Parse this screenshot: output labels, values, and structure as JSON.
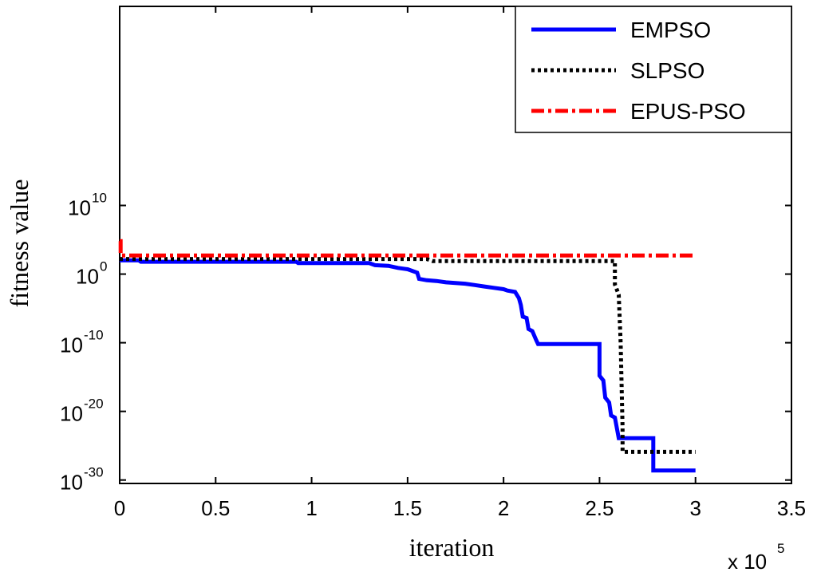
{
  "chart_data": {
    "type": "line",
    "xlabel": "iteration",
    "ylabel": "fitness value",
    "x_multiplier": {
      "base": "x 10",
      "exp": "5"
    },
    "xlim": [
      0,
      3.5
    ],
    "ylim_log10": [
      -30.5,
      39
    ],
    "x_ticks": [
      "0",
      "0.5",
      "1",
      "1.5",
      "2",
      "2.5",
      "3",
      "3.5"
    ],
    "y_ticks": [
      {
        "base": "10",
        "exp": "-30",
        "log": -30
      },
      {
        "base": "10",
        "exp": "-20",
        "log": -20
      },
      {
        "base": "10",
        "exp": "-10",
        "log": -10
      },
      {
        "base": "10",
        "exp": "0",
        "log": 0
      },
      {
        "base": "10",
        "exp": "10",
        "log": 10
      }
    ],
    "y_scale": "log",
    "grid": false,
    "legend_position": "top-right",
    "series": [
      {
        "name": "EMPSO",
        "color": "#0000ff",
        "style": "solid",
        "points": [
          [
            0,
            2
          ],
          [
            0.1,
            2
          ],
          [
            0.11,
            1.8
          ],
          [
            0.92,
            1.8
          ],
          [
            0.93,
            1.6
          ],
          [
            1.3,
            1.6
          ],
          [
            1.33,
            1.3
          ],
          [
            1.4,
            1.2
          ],
          [
            1.45,
            0.9
          ],
          [
            1.5,
            0.7
          ],
          [
            1.55,
            0.2
          ],
          [
            1.56,
            -0.7
          ],
          [
            1.6,
            -0.9
          ],
          [
            1.65,
            -1.0
          ],
          [
            1.7,
            -1.2
          ],
          [
            1.8,
            -1.4
          ],
          [
            1.85,
            -1.6
          ],
          [
            1.9,
            -1.8
          ],
          [
            1.95,
            -2.0
          ],
          [
            2.0,
            -2.2
          ],
          [
            2.02,
            -2.4
          ],
          [
            2.06,
            -2.6
          ],
          [
            2.08,
            -3.5
          ],
          [
            2.09,
            -4.5
          ],
          [
            2.1,
            -6.2
          ],
          [
            2.12,
            -6.4
          ],
          [
            2.13,
            -8.0
          ],
          [
            2.15,
            -8.3
          ],
          [
            2.17,
            -9.6
          ],
          [
            2.18,
            -10.2
          ],
          [
            2.5,
            -10.2
          ],
          [
            2.5,
            -14.8
          ],
          [
            2.52,
            -15.5
          ],
          [
            2.53,
            -18.0
          ],
          [
            2.55,
            -18.7
          ],
          [
            2.56,
            -20.6
          ],
          [
            2.58,
            -20.9
          ],
          [
            2.6,
            -23.9
          ],
          [
            2.78,
            -23.9
          ],
          [
            2.78,
            -28.6
          ],
          [
            3.0,
            -28.6
          ]
        ]
      },
      {
        "name": "SLPSO",
        "color": "#000000",
        "style": "dotted",
        "points": [
          [
            0,
            2.2
          ],
          [
            1.6,
            2.2
          ],
          [
            1.63,
            1.9
          ],
          [
            2.58,
            1.9
          ],
          [
            2.58,
            -1.5
          ],
          [
            2.6,
            -3.0
          ],
          [
            2.61,
            -10.0
          ],
          [
            2.62,
            -22.4
          ],
          [
            2.62,
            -25.9
          ],
          [
            3.0,
            -25.9
          ]
        ]
      },
      {
        "name": "EPUS-PSO",
        "color": "#ff0000",
        "style": "dashdot",
        "points": [
          [
            0,
            4.8
          ],
          [
            0.005,
            4.8
          ],
          [
            0.005,
            2.7
          ],
          [
            3.0,
            2.7
          ]
        ]
      }
    ]
  }
}
